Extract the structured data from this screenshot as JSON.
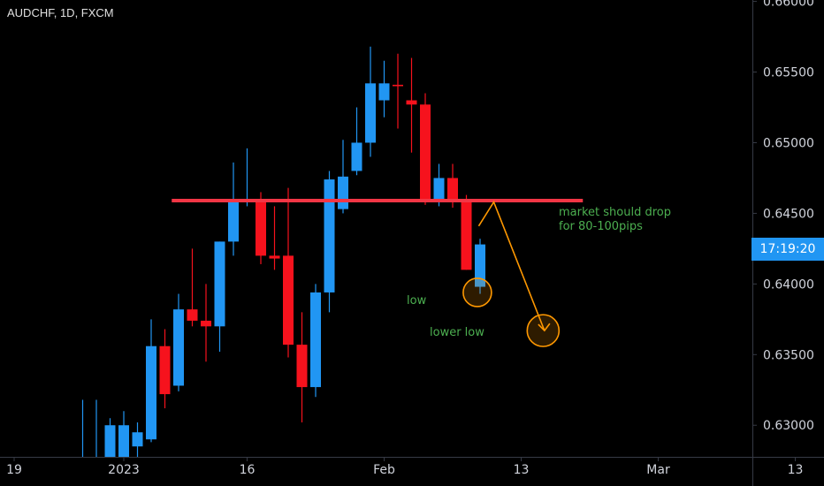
{
  "symbol": "AUDCHF, 1D, FXCM",
  "price_tag": "17:19:20",
  "annotations": {
    "note_line1": "market should drop",
    "note_line2": "for 80-100pips",
    "low": "low",
    "lower_low": "lower low"
  },
  "colors": {
    "background": "#000000",
    "up": "#2196f3",
    "down": "#f6121d",
    "resistance_line": "#f23645",
    "projection": "#ff9800",
    "note_text": "#4caf50",
    "axis_text": "#d1d4dc",
    "axis_line": "#363a45"
  },
  "chart_data": {
    "type": "candlestick",
    "y_axis": {
      "ylim": [
        0.6267,
        0.6601
      ],
      "ticks": [
        "0.63000",
        "0.63500",
        "0.64000",
        "0.64500",
        "0.65000",
        "0.65500",
        "0.66000"
      ]
    },
    "x_axis": {
      "tick_labels": [
        "19",
        "2023",
        "16",
        "Feb",
        "13",
        "Mar",
        "13"
      ],
      "tick_index": [
        -8,
        0,
        9,
        19,
        29,
        39,
        49
      ]
    },
    "candles": [
      {
        "i": -3,
        "o": 0.627,
        "h": 0.6318,
        "l": 0.6267,
        "c": 0.627
      },
      {
        "i": -2,
        "o": 0.627,
        "h": 0.6318,
        "l": 0.6267,
        "c": 0.627
      },
      {
        "i": -1,
        "o": 0.627,
        "h": 0.6305,
        "l": 0.6267,
        "c": 0.63
      },
      {
        "i": 0,
        "o": 0.627,
        "h": 0.631,
        "l": 0.6267,
        "c": 0.63
      },
      {
        "i": 1,
        "o": 0.6285,
        "h": 0.6302,
        "l": 0.6267,
        "c": 0.6295
      },
      {
        "i": 2,
        "o": 0.629,
        "h": 0.6375,
        "l": 0.6288,
        "c": 0.6356
      },
      {
        "i": 3,
        "o": 0.6356,
        "h": 0.6368,
        "l": 0.6312,
        "c": 0.6322
      },
      {
        "i": 4,
        "o": 0.6328,
        "h": 0.6393,
        "l": 0.6324,
        "c": 0.6382
      },
      {
        "i": 5,
        "o": 0.6382,
        "h": 0.6425,
        "l": 0.637,
        "c": 0.6374
      },
      {
        "i": 6,
        "o": 0.6374,
        "h": 0.64,
        "l": 0.6345,
        "c": 0.637
      },
      {
        "i": 7,
        "o": 0.637,
        "h": 0.643,
        "l": 0.6352,
        "c": 0.643
      },
      {
        "i": 8,
        "o": 0.643,
        "h": 0.6486,
        "l": 0.642,
        "c": 0.646
      },
      {
        "i": 9,
        "o": 0.6458,
        "h": 0.6496,
        "l": 0.6455,
        "c": 0.646
      },
      {
        "i": 10,
        "o": 0.646,
        "h": 0.6465,
        "l": 0.6414,
        "c": 0.642
      },
      {
        "i": 11,
        "o": 0.642,
        "h": 0.6455,
        "l": 0.641,
        "c": 0.6418
      },
      {
        "i": 12,
        "o": 0.642,
        "h": 0.6468,
        "l": 0.6348,
        "c": 0.6357
      },
      {
        "i": 13,
        "o": 0.6357,
        "h": 0.638,
        "l": 0.6302,
        "c": 0.6327
      },
      {
        "i": 14,
        "o": 0.6327,
        "h": 0.64,
        "l": 0.632,
        "c": 0.6394
      },
      {
        "i": 15,
        "o": 0.6394,
        "h": 0.648,
        "l": 0.638,
        "c": 0.6474
      },
      {
        "i": 16,
        "o": 0.6453,
        "h": 0.6502,
        "l": 0.645,
        "c": 0.6476
      },
      {
        "i": 17,
        "o": 0.648,
        "h": 0.6525,
        "l": 0.6477,
        "c": 0.65
      },
      {
        "i": 18,
        "o": 0.65,
        "h": 0.6568,
        "l": 0.649,
        "c": 0.6542
      },
      {
        "i": 19,
        "o": 0.653,
        "h": 0.6558,
        "l": 0.6518,
        "c": 0.6542
      },
      {
        "i": 20,
        "o": 0.6541,
        "h": 0.6563,
        "l": 0.651,
        "c": 0.654
      },
      {
        "i": 21,
        "o": 0.653,
        "h": 0.656,
        "l": 0.6493,
        "c": 0.6527
      },
      {
        "i": 22,
        "o": 0.6527,
        "h": 0.6535,
        "l": 0.6456,
        "c": 0.6458
      },
      {
        "i": 23,
        "o": 0.6458,
        "h": 0.6485,
        "l": 0.6455,
        "c": 0.6475
      },
      {
        "i": 24,
        "o": 0.6475,
        "h": 0.6485,
        "l": 0.6454,
        "c": 0.6459
      },
      {
        "i": 25,
        "o": 0.6459,
        "h": 0.6463,
        "l": 0.641,
        "c": 0.641
      },
      {
        "i": 26,
        "o": 0.6398,
        "h": 0.6432,
        "l": 0.6393,
        "c": 0.6428
      }
    ],
    "horizontal_line": {
      "y": 0.6459,
      "x_from": 3.5,
      "x_to": 33.5
    },
    "projection_path": [
      {
        "i": 25.9,
        "y": 0.6441
      },
      {
        "i": 27.0,
        "y": 0.6458
      },
      {
        "i": 30.7,
        "y": 0.6367
      }
    ],
    "circles": [
      {
        "i": 25.8,
        "y": 0.6394,
        "r": 16
      },
      {
        "i": 30.6,
        "y": 0.6367,
        "r": 18
      }
    ]
  }
}
